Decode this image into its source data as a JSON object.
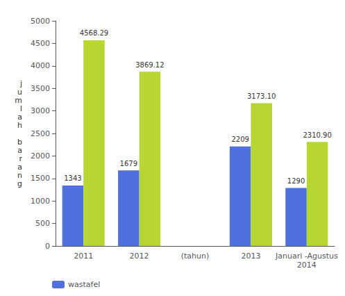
{
  "chart_data": {
    "type": "bar",
    "categories": [
      "2011",
      "2012",
      "(tahun)",
      "2013",
      "Januari -Agustus\n2014"
    ],
    "ylabel": "jumlah barang",
    "series": [
      {
        "name": "wastafel",
        "values": [
          1343,
          1679,
          null,
          2209,
          1290
        ]
      },
      {
        "values": [
          4568.29,
          3869.12,
          null,
          3173.1,
          2310.9
        ],
        "value_labels": [
          "4568.29",
          "3869.12",
          null,
          "3173.10",
          "2310.90"
        ]
      }
    ],
    "ylim": [
      0,
      5000
    ],
    "yticks": [
      0,
      500,
      1000,
      1500,
      2000,
      2500,
      3000,
      3500,
      4000,
      4500,
      5000
    ],
    "grid": false,
    "legend": "lower left",
    "data_labels": true
  }
}
